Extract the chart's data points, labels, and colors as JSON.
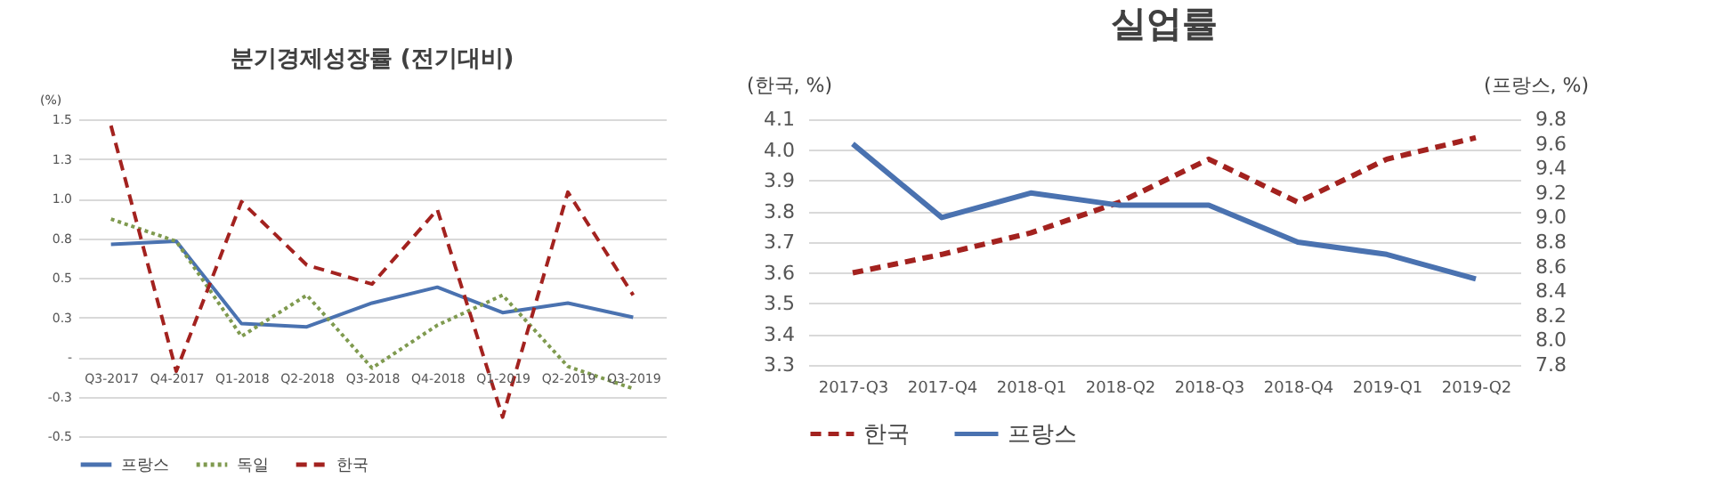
{
  "chart_data": [
    {
      "type": "line",
      "title": "분기경제성장률 (전기대비)",
      "ylabel": "(%)",
      "categories": [
        "Q3-2017",
        "Q4-2017",
        "Q1-2018",
        "Q2-2018",
        "Q3-2018",
        "Q4-2018",
        "Q1-2019",
        "Q2-2019",
        "Q3-2019"
      ],
      "series": [
        {
          "name": "프랑스",
          "color": "#4a72b0",
          "line_style": "solid",
          "values": [
            0.71,
            0.73,
            0.21,
            0.19,
            0.34,
            0.44,
            0.28,
            0.34,
            0.25
          ]
        },
        {
          "name": "독일",
          "color": "#7f9a4f",
          "line_style": "dotted",
          "values": [
            0.87,
            0.73,
            0.13,
            0.39,
            -0.07,
            0.2,
            0.39,
            -0.06,
            -0.2
          ]
        },
        {
          "name": "한국",
          "color": "#a3221f",
          "line_style": "dashed",
          "values": [
            1.46,
            -0.09,
            0.98,
            0.58,
            0.46,
            0.93,
            -0.38,
            1.04,
            0.39
          ]
        }
      ],
      "ylim": [
        -0.5,
        1.5
      ],
      "yticks": [
        -0.5,
        {
          "value": -0.25,
          "label": "-0.3"
        },
        {
          "value": 0,
          "label": "-"
        },
        {
          "value": 0.25,
          "label": "0.3"
        },
        0.5,
        {
          "value": 0.75,
          "label": "0.8"
        },
        {
          "value": 1,
          "label": "1.0"
        },
        {
          "value": 1.25,
          "label": "1.3"
        },
        1.5
      ],
      "grid": "y",
      "legend": "bottom"
    },
    {
      "type": "line",
      "title": "실업률",
      "ylabel": "(한국, %)",
      "y2label": "(프랑스, %)",
      "categories": [
        "2017-Q3",
        "2017-Q4",
        "2018-Q1",
        "2018-Q2",
        "2018-Q3",
        "2018-Q4",
        "2019-Q1",
        "2019-Q2"
      ],
      "series": [
        {
          "name": "한국",
          "color": "#a3221f",
          "line_style": "dashed",
          "values": [
            3.6,
            3.66,
            3.73,
            3.83,
            3.97,
            3.83,
            3.97,
            4.04
          ]
        },
        {
          "name": "프랑스",
          "color": "#4a72b0",
          "line_style": "solid",
          "axis": "y2",
          "values": [
            9.6,
            9.0,
            9.2,
            9.1,
            9.1,
            8.8,
            8.7,
            8.5
          ]
        }
      ],
      "ylim": [
        3.3,
        4.1
      ],
      "yticks": [
        3.3,
        3.4,
        3.5,
        3.6,
        3.7,
        3.8,
        3.9,
        {
          "value": 4,
          "label": "4.0"
        },
        4.1
      ],
      "y2lim": [
        7.8,
        9.8
      ],
      "y2ticks": [
        7.8,
        {
          "value": 8,
          "label": "8.0"
        },
        8.2,
        8.4,
        8.6,
        8.8,
        {
          "value": 9,
          "label": "9.0"
        },
        9.2,
        9.4,
        9.6,
        9.8
      ],
      "grid": "y",
      "legend": "bottom"
    }
  ]
}
